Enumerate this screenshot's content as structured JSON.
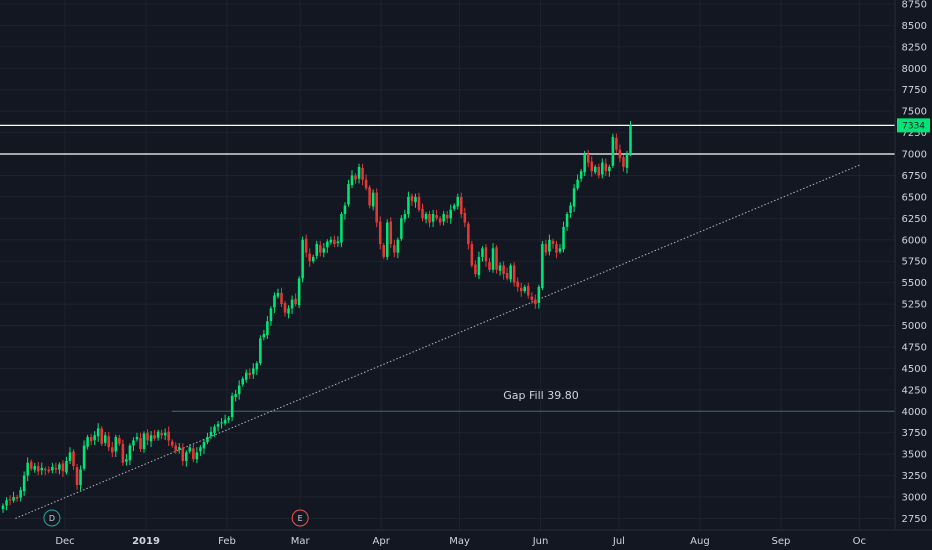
{
  "chart_data": {
    "type": "candlestick",
    "y_ticks": [
      2750,
      3000,
      3250,
      3500,
      3750,
      4000,
      4250,
      4500,
      4750,
      5000,
      5250,
      5500,
      5750,
      6000,
      6250,
      6500,
      6750,
      7000,
      7250,
      7500,
      7750,
      8000,
      8250,
      8500,
      8750
    ],
    "x_ticks": [
      {
        "label": "Dec",
        "date": "2018-12-01",
        "bold": false
      },
      {
        "label": "2019",
        "date": "2019-01-01",
        "bold": true
      },
      {
        "label": "Feb",
        "date": "2019-02-01",
        "bold": false
      },
      {
        "label": "Mar",
        "date": "2019-03-01",
        "bold": false
      },
      {
        "label": "Apr",
        "date": "2019-04-01",
        "bold": false
      },
      {
        "label": "May",
        "date": "2019-05-01",
        "bold": false
      },
      {
        "label": "Jun",
        "date": "2019-06-01",
        "bold": false
      },
      {
        "label": "Jul",
        "date": "2019-07-01",
        "bold": false
      },
      {
        "label": "Aug",
        "date": "2019-08-01",
        "bold": false
      },
      {
        "label": "Sep",
        "date": "2019-09-01",
        "bold": false
      },
      {
        "label": "Oc",
        "date": "2019-10-01",
        "bold": false
      }
    ],
    "closes": [
      2900,
      2960,
      2970,
      3000,
      2980,
      3080,
      3250,
      3400,
      3330,
      3360,
      3300,
      3340,
      3320,
      3300,
      3350,
      3320,
      3380,
      3300,
      3420,
      3520,
      3360,
      3140,
      3320,
      3600,
      3700,
      3650,
      3720,
      3800,
      3620,
      3720,
      3580,
      3520,
      3700,
      3620,
      3400,
      3440,
      3600,
      3660,
      3700,
      3560,
      3740,
      3660,
      3720,
      3680,
      3760,
      3720,
      3750,
      3660,
      3600,
      3540,
      3580,
      3420,
      3520,
      3580,
      3440,
      3520,
      3580,
      3640,
      3700,
      3760,
      3820,
      3850,
      3870,
      3900,
      3920,
      4180,
      4200,
      4300,
      4380,
      4450,
      4420,
      4500,
      4560,
      4850,
      4900,
      5050,
      5200,
      5350,
      5380,
      5250,
      5150,
      5200,
      5300,
      5250,
      5550,
      6000,
      5850,
      5750,
      5800,
      5950,
      5850,
      5900,
      5980,
      6000,
      5950,
      5980,
      6300,
      6400,
      6650,
      6750,
      6700,
      6850,
      6700,
      6600,
      6400,
      6550,
      6200,
      5950,
      5800,
      6200,
      5950,
      5850,
      6000,
      6250,
      6300,
      6500,
      6450,
      6500,
      6350,
      6250,
      6300,
      6200,
      6300,
      6250,
      6200,
      6300,
      6250,
      6350,
      6400,
      6500,
      6300,
      6200,
      5950,
      5700,
      5600,
      5800,
      5900,
      5750,
      5650,
      5900,
      5650,
      5700,
      5600,
      5550,
      5700,
      5500,
      5450,
      5400,
      5450,
      5350,
      5300,
      5250,
      5450,
      5950,
      5850,
      6000,
      5950,
      5850,
      5900,
      6150,
      6300,
      6400,
      6600,
      6700,
      6800,
      7000,
      6900,
      6800,
      6850,
      6750,
      6900,
      6800,
      6850,
      7200,
      7050,
      6950,
      6850,
      7000,
      7334
    ],
    "last_price": 7334,
    "horizontal_lines": [
      7334,
      7000
    ],
    "gap_line": {
      "value": 4000,
      "label": "Gap Fill 39.80"
    },
    "trendline": {
      "from": {
        "date": "2018-11-12",
        "value": 2750
      },
      "to": {
        "date": "2019-10-01",
        "value": 6870
      }
    },
    "markers": [
      {
        "letter": "D",
        "date": "2018-11-26",
        "color": "#26a69a"
      },
      {
        "letter": "E",
        "date": "2019-03-01",
        "color": "#ef5350"
      }
    ],
    "colors": {
      "up": "#00e676",
      "down": "#e53935",
      "background": "#131722",
      "grid": "#1e222d",
      "text": "#d1d4dc",
      "price_badge": "#00e676"
    }
  }
}
